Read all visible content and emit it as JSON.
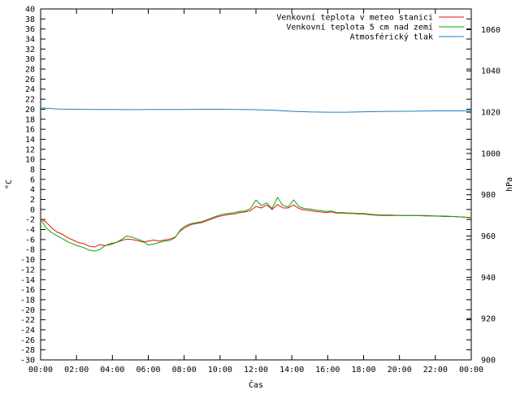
{
  "chart_data": {
    "type": "line",
    "xlabel": "Čas",
    "ylabel": "°C",
    "y2label": "hPa",
    "x_tick_labels": [
      "00:00",
      "02:00",
      "04:00",
      "06:00",
      "08:00",
      "10:00",
      "12:00",
      "14:00",
      "16:00",
      "18:00",
      "20:00",
      "22:00",
      "00:00"
    ],
    "xlim": [
      0,
      24
    ],
    "ylim": [
      -30,
      40
    ],
    "y2lim": [
      900,
      1070
    ],
    "y_ticks": [
      40,
      38,
      36,
      34,
      32,
      30,
      28,
      26,
      24,
      22,
      20,
      18,
      16,
      14,
      12,
      10,
      8,
      6,
      4,
      2,
      0,
      -2,
      -4,
      -6,
      -8,
      -10,
      -12,
      -14,
      -16,
      -18,
      -20,
      -22,
      -24,
      -26,
      -28,
      -30
    ],
    "y2_ticks": [
      1060,
      1040,
      1020,
      1000,
      980,
      960,
      940,
      920,
      900
    ],
    "legend_position": "top-right",
    "series": [
      {
        "name": "Venkovní teplota v meteo stanici",
        "color": "#e8120b",
        "axis": "left",
        "x": [
          0,
          0.3,
          0.6,
          0.9,
          1.2,
          1.5,
          1.8,
          2.1,
          2.4,
          2.7,
          3.0,
          3.3,
          3.6,
          3.9,
          4.2,
          4.5,
          4.8,
          5.1,
          5.4,
          5.7,
          6.0,
          6.3,
          6.6,
          6.9,
          7.2,
          7.5,
          7.8,
          8.1,
          8.4,
          8.7,
          9.0,
          9.3,
          9.6,
          9.9,
          10.2,
          10.5,
          10.8,
          11.1,
          11.4,
          11.7,
          12.0,
          12.3,
          12.6,
          12.9,
          13.2,
          13.5,
          13.8,
          14.1,
          14.4,
          14.7,
          15.0,
          15.3,
          15.6,
          15.9,
          16.2,
          16.5,
          16.8,
          17.1,
          17.4,
          17.7,
          18.0,
          18.5,
          19.0,
          19.5,
          20.0,
          20.5,
          21.0,
          21.5,
          22.0,
          22.5,
          23.0,
          23.5,
          24.0
        ],
        "y": [
          -1.8,
          -2.5,
          -3.6,
          -4.5,
          -4.9,
          -5.6,
          -6.1,
          -6.6,
          -6.8,
          -7.3,
          -7.5,
          -7.0,
          -7.2,
          -6.8,
          -6.6,
          -6.2,
          -5.9,
          -6.0,
          -6.2,
          -6.5,
          -6.3,
          -6.1,
          -6.3,
          -6.1,
          -5.9,
          -5.5,
          -4.2,
          -3.5,
          -3.0,
          -2.8,
          -2.6,
          -2.2,
          -1.8,
          -1.4,
          -1.2,
          -1.0,
          -0.9,
          -0.6,
          -0.5,
          -0.2,
          0.6,
          0.3,
          0.9,
          0.0,
          1.0,
          0.3,
          0.3,
          0.9,
          0.2,
          -0.1,
          -0.2,
          -0.4,
          -0.5,
          -0.6,
          -0.5,
          -0.7,
          -0.7,
          -0.8,
          -0.8,
          -0.9,
          -0.9,
          -1.1,
          -1.2,
          -1.2,
          -1.2,
          -1.2,
          -1.2,
          -1.3,
          -1.3,
          -1.4,
          -1.4,
          -1.5,
          -1.7
        ]
      },
      {
        "name": "Venkovní teplota 5 cm nad zemí",
        "color": "#0ca30c",
        "axis": "left",
        "x": [
          0,
          0.3,
          0.6,
          0.9,
          1.2,
          1.5,
          1.8,
          2.1,
          2.4,
          2.7,
          3.0,
          3.3,
          3.6,
          3.9,
          4.2,
          4.5,
          4.8,
          5.1,
          5.4,
          5.7,
          6.0,
          6.3,
          6.6,
          6.9,
          7.2,
          7.5,
          7.8,
          8.1,
          8.4,
          8.7,
          9.0,
          9.3,
          9.6,
          9.9,
          10.2,
          10.5,
          10.8,
          11.1,
          11.4,
          11.7,
          12.0,
          12.3,
          12.6,
          12.9,
          13.2,
          13.5,
          13.8,
          14.1,
          14.4,
          14.7,
          15.0,
          15.3,
          15.6,
          15.9,
          16.2,
          16.5,
          16.8,
          17.1,
          17.4,
          17.7,
          18.0,
          18.5,
          19.0,
          19.5,
          20.0,
          20.5,
          21.0,
          21.5,
          22.0,
          22.5,
          23.0,
          23.5,
          24.0
        ],
        "y": [
          -1.9,
          -3.6,
          -4.6,
          -5.2,
          -5.8,
          -6.4,
          -6.9,
          -7.3,
          -7.6,
          -8.1,
          -8.3,
          -8.0,
          -7.2,
          -7.0,
          -6.6,
          -6.0,
          -5.3,
          -5.5,
          -5.9,
          -6.3,
          -7.1,
          -6.9,
          -6.6,
          -6.3,
          -6.2,
          -5.6,
          -4.0,
          -3.2,
          -2.8,
          -2.6,
          -2.4,
          -2.0,
          -1.6,
          -1.2,
          -0.9,
          -0.8,
          -0.6,
          -0.4,
          -0.3,
          0.2,
          1.9,
          0.8,
          1.3,
          0.2,
          2.4,
          0.8,
          0.5,
          1.9,
          0.6,
          0.2,
          0.1,
          -0.1,
          -0.2,
          -0.4,
          -0.3,
          -0.6,
          -0.6,
          -0.7,
          -0.7,
          -0.8,
          -0.8,
          -1.0,
          -1.1,
          -1.1,
          -1.2,
          -1.2,
          -1.2,
          -1.2,
          -1.3,
          -1.3,
          -1.4,
          -1.5,
          -1.6
        ]
      },
      {
        "name": "Atmosférický tlak",
        "color": "#1b7fc4",
        "axis": "right",
        "x": [
          0,
          1,
          2,
          3,
          4,
          5,
          6,
          7,
          8,
          9,
          10,
          11,
          12,
          13,
          14,
          15,
          16,
          17,
          18,
          19,
          20,
          21,
          22,
          23,
          24
        ],
        "y": [
          1022.1,
          1021.5,
          1021.4,
          1021.3,
          1021.3,
          1021.2,
          1021.3,
          1021.3,
          1021.3,
          1021.4,
          1021.4,
          1021.3,
          1021.2,
          1020.9,
          1020.4,
          1020.1,
          1020.0,
          1020.0,
          1020.2,
          1020.3,
          1020.4,
          1020.5,
          1020.6,
          1020.6,
          1020.7
        ]
      }
    ]
  }
}
